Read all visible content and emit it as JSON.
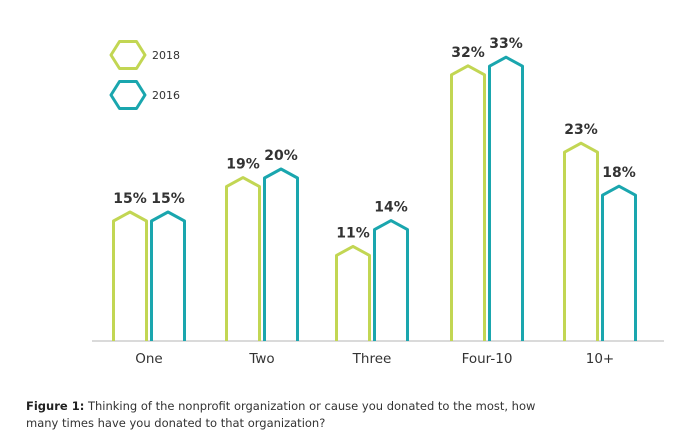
{
  "chart_data": {
    "type": "bar",
    "categories": [
      "One",
      "Two",
      "Three",
      "Four-10",
      "10+"
    ],
    "series": [
      {
        "name": "2018",
        "values": [
          15,
          19,
          11,
          32,
          23
        ],
        "labels": [
          "15%",
          "19%",
          "11%",
          "32%",
          "23%"
        ],
        "color": "#c2d653"
      },
      {
        "name": "2016",
        "values": [
          15,
          20,
          14,
          33,
          18
        ],
        "labels": [
          "15%",
          "20%",
          "14%",
          "33%",
          "18%"
        ],
        "color": "#1aa6ae"
      }
    ],
    "ylim": [
      0,
      35
    ],
    "legend_position": "top-left",
    "grid": false,
    "xlabel": "",
    "ylabel": ""
  },
  "caption": {
    "label": "Figure 1:",
    "text": "Thinking of the nonprofit organization or cause you donated to the most, how many times have you donated to that organization?"
  },
  "colors": {
    "text": "#333333",
    "axis": "#b5b5b5"
  }
}
